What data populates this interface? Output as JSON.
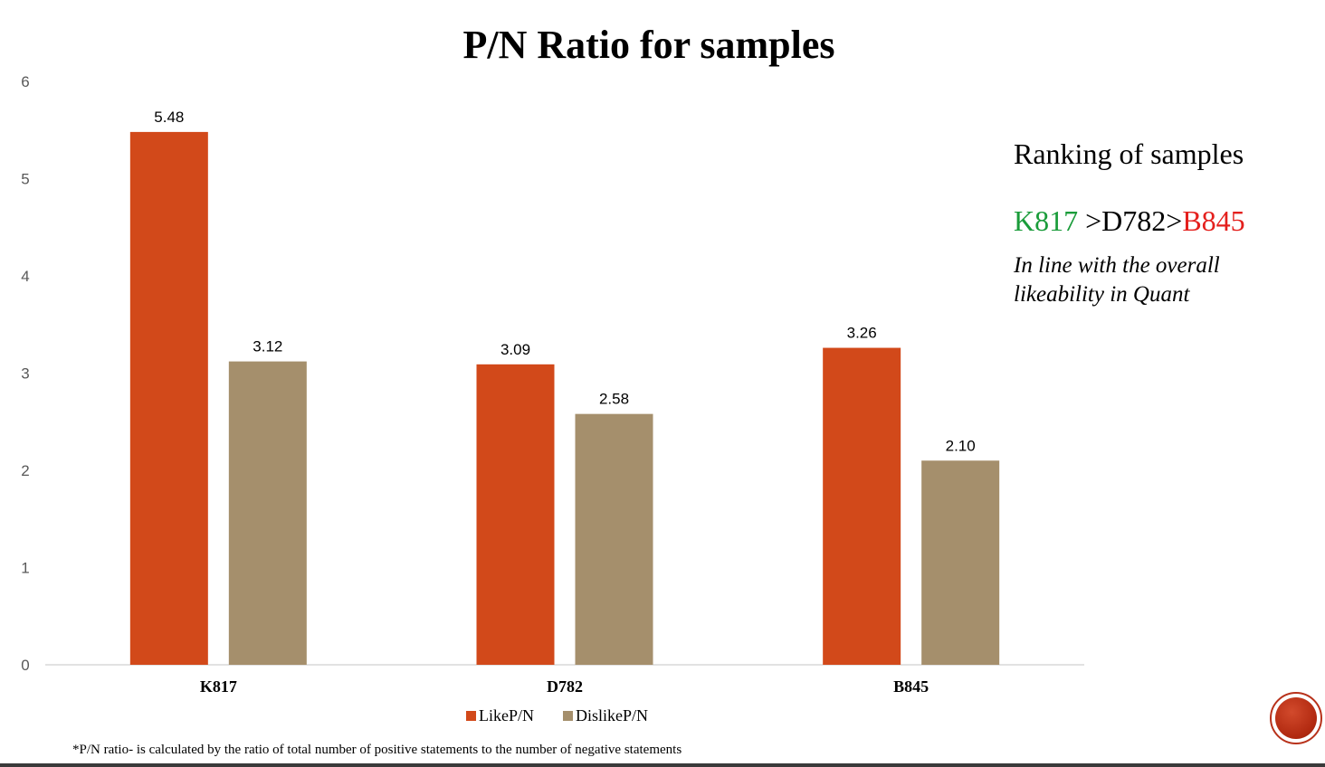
{
  "slide": {
    "title": "P/N Ratio for samples",
    "side_heading": "Ranking of samples",
    "ranking": {
      "first": "K817",
      "sep1": " >",
      "second": "D782",
      "sep2": ">",
      "third": "B845",
      "first_color": "#1a9c3a",
      "third_color": "#e4201d"
    },
    "note_line1": "In line with the overall",
    "note_line2": "likeability in Quant",
    "footnote": "*P/N ratio- is calculated by the ratio of  total  number of positive statements to the number of negative statements"
  },
  "chart_data": {
    "type": "bar",
    "categories": [
      "K817",
      "D782",
      "B845"
    ],
    "series": [
      {
        "name": "LikeP/N",
        "values": [
          5.48,
          3.09,
          3.26
        ],
        "labels": [
          "5.48",
          "3.09",
          "3.26"
        ],
        "color": "#d2491a"
      },
      {
        "name": "DislikeP/N",
        "values": [
          3.12,
          2.58,
          2.1
        ],
        "labels": [
          "3.12",
          "2.58",
          "2.10"
        ],
        "color": "#a58f6c"
      }
    ],
    "ylim": [
      0,
      6
    ],
    "yticks": [
      "0",
      "1",
      "2",
      "3",
      "4",
      "5",
      "6"
    ],
    "grid": false,
    "legend_position": "bottom"
  }
}
